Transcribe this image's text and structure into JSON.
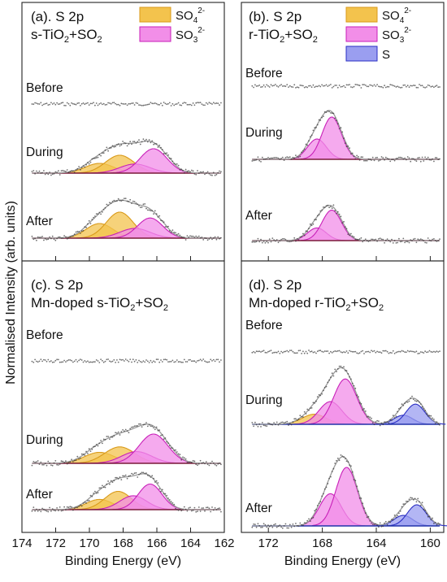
{
  "colors": {
    "so4_fill": "#f3c34d",
    "so4_stroke": "#d99a1a",
    "so3_fill": "#f28ee8",
    "so3_stroke": "#c81fb8",
    "s_fill": "#9a9ef0",
    "s_stroke": "#2b2fc4",
    "envelope": "#9a9a9a",
    "baseline": "#7a1b3a",
    "baseline_blue": "#2233aa",
    "points": "#333333"
  },
  "chart_data": [
    {
      "id": "a",
      "type": "line",
      "panel_title": "(a). S 2p",
      "sample": [
        "s-TiO",
        "2",
        "+SO",
        "2"
      ],
      "xlim": [
        174,
        162
      ],
      "xticks": [
        174,
        172,
        170,
        168,
        166,
        164,
        162
      ],
      "show_xticklabels": false,
      "legend": [
        "so4",
        "so3"
      ],
      "series": [
        {
          "name": "Before",
          "components": []
        },
        {
          "name": "During",
          "components": [
            {
              "species": "so4",
              "center": 169.4,
              "amp": 0.3,
              "width": 0.85
            },
            {
              "species": "so4",
              "center": 168.2,
              "amp": 0.55,
              "width": 0.85
            },
            {
              "species": "so3",
              "center": 167.3,
              "amp": 0.28,
              "width": 0.9
            },
            {
              "species": "so3",
              "center": 166.2,
              "amp": 0.75,
              "width": 0.8
            }
          ]
        },
        {
          "name": "After",
          "components": [
            {
              "species": "so4",
              "center": 169.4,
              "amp": 0.45,
              "width": 0.8
            },
            {
              "species": "so4",
              "center": 168.2,
              "amp": 0.8,
              "width": 0.8
            },
            {
              "species": "so3",
              "center": 167.3,
              "amp": 0.3,
              "width": 0.9
            },
            {
              "species": "so3",
              "center": 166.4,
              "amp": 0.62,
              "width": 0.75
            }
          ]
        }
      ]
    },
    {
      "id": "b",
      "type": "line",
      "panel_title": "(b). S 2p",
      "sample": [
        "r-TiO",
        "2",
        "+SO",
        "2"
      ],
      "xlim": [
        174,
        159
      ],
      "xticks": [
        172,
        168,
        164,
        160
      ],
      "show_xticklabels": false,
      "legend": [
        "so4",
        "so3",
        "s"
      ],
      "series": [
        {
          "name": "Before",
          "components": []
        },
        {
          "name": "During",
          "components": [
            {
              "species": "so3",
              "center": 168.4,
              "amp": 0.48,
              "width": 0.7
            },
            {
              "species": "so3",
              "center": 167.3,
              "amp": 1.0,
              "width": 0.72
            }
          ]
        },
        {
          "name": "After",
          "components": [
            {
              "species": "so3",
              "center": 168.4,
              "amp": 0.3,
              "width": 0.7
            },
            {
              "species": "so3",
              "center": 167.3,
              "amp": 0.72,
              "width": 0.72
            }
          ]
        }
      ]
    },
    {
      "id": "c",
      "type": "line",
      "panel_title": "(c). S 2p",
      "sample": [
        "Mn-doped s-TiO",
        "2",
        "+SO",
        "2"
      ],
      "xlim": [
        174,
        162
      ],
      "xticks": [
        174,
        172,
        170,
        168,
        166,
        164,
        162
      ],
      "show_xticklabels": true,
      "xlabel": "Binding Energy (eV)",
      "legend": [],
      "series": [
        {
          "name": "Before",
          "components": []
        },
        {
          "name": "During",
          "components": [
            {
              "species": "so4",
              "center": 169.4,
              "amp": 0.3,
              "width": 0.9
            },
            {
              "species": "so4",
              "center": 168.2,
              "amp": 0.45,
              "width": 0.9
            },
            {
              "species": "so3",
              "center": 167.2,
              "amp": 0.32,
              "width": 0.9
            },
            {
              "species": "so3",
              "center": 166.2,
              "amp": 0.8,
              "width": 0.85
            }
          ]
        },
        {
          "name": "After",
          "components": [
            {
              "species": "so4",
              "center": 169.4,
              "amp": 0.28,
              "width": 0.8
            },
            {
              "species": "so4",
              "center": 168.3,
              "amp": 0.5,
              "width": 0.8
            },
            {
              "species": "so3",
              "center": 167.4,
              "amp": 0.38,
              "width": 0.8
            },
            {
              "species": "so3",
              "center": 166.4,
              "amp": 0.7,
              "width": 0.7
            }
          ]
        }
      ]
    },
    {
      "id": "d",
      "type": "line",
      "panel_title": "(d). S 2p",
      "sample": [
        "Mn-doped r-TiO",
        "2",
        "+SO",
        "2"
      ],
      "xlim": [
        174,
        159
      ],
      "xticks": [
        172,
        168,
        164,
        160
      ],
      "show_xticklabels": true,
      "xlabel": "Binding Energy (eV)",
      "legend": [],
      "series": [
        {
          "name": "Before",
          "components": []
        },
        {
          "name": "During",
          "components": [
            {
              "species": "so4",
              "center": 168.6,
              "amp": 0.2,
              "width": 0.9
            },
            {
              "species": "so3",
              "center": 167.4,
              "amp": 0.45,
              "width": 0.85
            },
            {
              "species": "so3",
              "center": 166.3,
              "amp": 0.9,
              "width": 0.85
            },
            {
              "species": "s",
              "center": 162.0,
              "amp": 0.18,
              "width": 0.7
            },
            {
              "species": "s",
              "center": 161.1,
              "amp": 0.4,
              "width": 0.7
            }
          ]
        },
        {
          "name": "After",
          "components": [
            {
              "species": "so3",
              "center": 167.4,
              "amp": 0.55,
              "width": 0.8
            },
            {
              "species": "so3",
              "center": 166.2,
              "amp": 1.0,
              "width": 0.8
            },
            {
              "species": "s",
              "center": 162.0,
              "amp": 0.18,
              "width": 0.7
            },
            {
              "species": "s",
              "center": 161.0,
              "amp": 0.36,
              "width": 0.7
            }
          ]
        }
      ]
    }
  ],
  "legend_labels": {
    "so4": [
      "SO",
      "4",
      "2-"
    ],
    "so3": [
      "SO",
      "3",
      "2-"
    ],
    "s": [
      "S",
      "",
      ""
    ]
  },
  "ylabel": "Normalised Intensity (arb. units)"
}
